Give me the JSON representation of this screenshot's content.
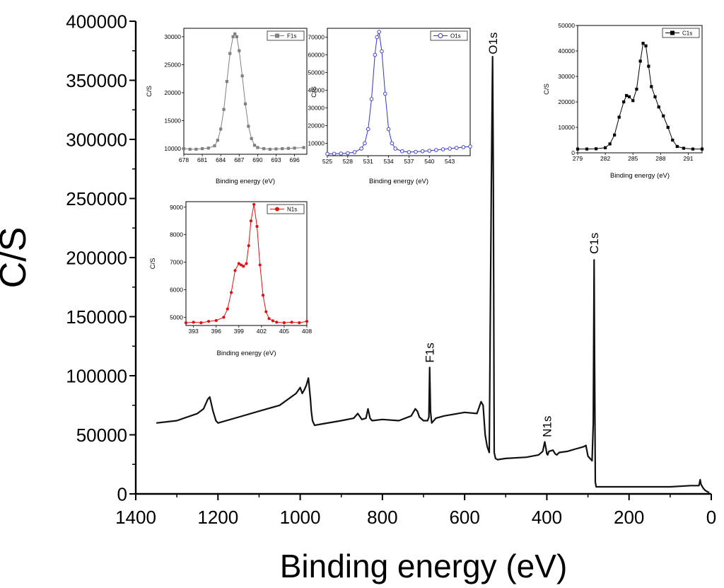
{
  "chart_data": [
    {
      "id": "main",
      "type": "line",
      "title": "",
      "xlabel": "Binding energy (eV)",
      "ylabel": "C/S",
      "xlim": [
        1400,
        0
      ],
      "ylim": [
        0,
        400000
      ],
      "xticks": [
        1400,
        1200,
        1000,
        800,
        600,
        400,
        200,
        0
      ],
      "yticks": [
        0,
        50000,
        100000,
        150000,
        200000,
        250000,
        300000,
        350000,
        400000
      ],
      "tick_labels_x": [
        "1400",
        "1200",
        "1000",
        "800",
        "600",
        "400",
        "200",
        "0"
      ],
      "tick_labels_y": [
        "0",
        "50000",
        "100000",
        "150000",
        "200000",
        "250000",
        "300000",
        "350000",
        "400000"
      ],
      "series": [
        {
          "name": "survey",
          "color": "#111111",
          "x": [
            1350,
            1300,
            1250,
            1235,
            1225,
            1220,
            1212,
            1205,
            1200,
            1150,
            1100,
            1050,
            1010,
            1000,
            995,
            990,
            985,
            980,
            975,
            973,
            970,
            965,
            950,
            900,
            870,
            860,
            850,
            840,
            835,
            830,
            825,
            800,
            760,
            730,
            720,
            715,
            710,
            700,
            690,
            687,
            685,
            683,
            680,
            670,
            650,
            600,
            570,
            560,
            555,
            550,
            545,
            540,
            535,
            532,
            530,
            528,
            525,
            520,
            500,
            450,
            420,
            410,
            405,
            402,
            400,
            398,
            395,
            385,
            380,
            376,
            370,
            350,
            340,
            330,
            320,
            310,
            305,
            300,
            295,
            290,
            287,
            285,
            284,
            282,
            280,
            270,
            250,
            200,
            150,
            100,
            50,
            30,
            27,
            25,
            20,
            15,
            10,
            5
          ],
          "y": [
            60000,
            62000,
            68000,
            72000,
            80000,
            82000,
            70000,
            62000,
            60000,
            65000,
            70000,
            75000,
            85000,
            90000,
            85000,
            88000,
            92000,
            98000,
            80000,
            70000,
            62000,
            58000,
            59000,
            62000,
            64000,
            68000,
            63000,
            64000,
            72000,
            64000,
            62000,
            63000,
            62000,
            66000,
            72000,
            70000,
            65000,
            62000,
            62000,
            65000,
            107000,
            70000,
            60000,
            64000,
            66000,
            69000,
            68000,
            78000,
            75000,
            50000,
            40000,
            35000,
            260000,
            370000,
            260000,
            35000,
            30000,
            29000,
            30000,
            31000,
            33000,
            36000,
            44000,
            38000,
            34000,
            33000,
            36000,
            37000,
            34000,
            33000,
            35000,
            36000,
            37000,
            38000,
            39000,
            40000,
            41000,
            32000,
            30000,
            28000,
            60000,
            198000,
            120000,
            10000,
            6000,
            6000,
            6000,
            6000,
            6000,
            6000,
            7000,
            7000,
            12000,
            8000,
            5000,
            3000,
            2000,
            1000
          ]
        }
      ],
      "annotations": [
        {
          "text": "O1s",
          "x": 531,
          "y": 372000
        },
        {
          "text": "C1s",
          "x": 285,
          "y": 203000
        },
        {
          "text": "F1s",
          "x": 685,
          "y": 111000
        },
        {
          "text": "N1s",
          "x": 400,
          "y": 48000
        }
      ]
    },
    {
      "id": "inset-f1s",
      "type": "scatter",
      "xlabel": "Binding energy (eV)",
      "ylabel": "C/S",
      "xlim": [
        678,
        698
      ],
      "ylim": [
        9000,
        31500
      ],
      "xticks": [
        678,
        681,
        684,
        687,
        690,
        693,
        696
      ],
      "yticks": [
        10000,
        15000,
        20000,
        25000,
        30000
      ],
      "tick_labels_x": [
        "678",
        "681",
        "684",
        "687",
        "690",
        "693",
        "696"
      ],
      "tick_labels_y": [
        "10000",
        "15000",
        "20000",
        "25000",
        "30000"
      ],
      "legend": "F1s",
      "legend_position": "top-right",
      "marker": "square",
      "series": [
        {
          "name": "F1s",
          "color": "#808080",
          "x": [
            678,
            679,
            680,
            681,
            682,
            683,
            683.5,
            684,
            684.5,
            685,
            685.5,
            686,
            686.3,
            686.6,
            687,
            687.5,
            688,
            688.5,
            689,
            689.5,
            690,
            691,
            692,
            693,
            694,
            695,
            696,
            697.5
          ],
          "y": [
            10000,
            9900,
            9900,
            10000,
            10100,
            10500,
            11500,
            13500,
            17000,
            22000,
            27000,
            30000,
            30500,
            30000,
            27500,
            23000,
            18000,
            14000,
            11800,
            10600,
            10200,
            10000,
            9900,
            9950,
            10000,
            10050,
            10100,
            10200
          ]
        }
      ]
    },
    {
      "id": "inset-o1s",
      "type": "scatter",
      "xlabel": "Binding energy (eV)",
      "ylabel": "C/S",
      "xlim": [
        525,
        546
      ],
      "ylim": [
        3000,
        75000
      ],
      "xticks": [
        525,
        528,
        531,
        534,
        537,
        540,
        543
      ],
      "yticks": [
        10000,
        20000,
        30000,
        40000,
        50000,
        60000,
        70000
      ],
      "tick_labels_x": [
        "525",
        "528",
        "531",
        "534",
        "537",
        "540",
        "543"
      ],
      "tick_labels_y": [
        "10000",
        "20000",
        "30000",
        "40000",
        "50000",
        "60000",
        "70000"
      ],
      "legend": "O1s",
      "legend_position": "top-right",
      "marker": "circle-open",
      "series": [
        {
          "name": "O1s",
          "color": "#3333cc",
          "x": [
            525,
            526,
            527,
            528,
            529,
            530,
            530.5,
            531,
            531.5,
            532,
            532.3,
            532.6,
            533,
            533.5,
            534,
            534.5,
            535,
            536,
            537,
            538,
            539,
            540,
            541,
            542,
            543,
            544,
            545,
            546
          ],
          "y": [
            4000,
            4100,
            4200,
            4400,
            5000,
            7000,
            10000,
            18000,
            35000,
            60000,
            70000,
            73000,
            62000,
            38000,
            18000,
            10000,
            7000,
            5500,
            5000,
            5200,
            5500,
            5800,
            6200,
            6600,
            7000,
            7400,
            7800,
            8200
          ]
        }
      ]
    },
    {
      "id": "inset-c1s",
      "type": "scatter",
      "xlabel": "Binding energy (eV)",
      "ylabel": "C/S",
      "xlim": [
        279,
        292.5
      ],
      "ylim": [
        0,
        50000
      ],
      "xticks": [
        279,
        282,
        285,
        288,
        291
      ],
      "yticks": [
        0,
        10000,
        20000,
        30000,
        40000,
        50000
      ],
      "tick_labels_x": [
        "279",
        "282",
        "285",
        "288",
        "291"
      ],
      "tick_labels_y": [
        "0",
        "10000",
        "20000",
        "30000",
        "40000",
        "50000"
      ],
      "legend": "C1s",
      "legend_position": "top-right",
      "marker": "square-filled",
      "series": [
        {
          "name": "C1s",
          "color": "#000000",
          "x": [
            279,
            280,
            281,
            282,
            282.5,
            283,
            283.5,
            284,
            284.3,
            284.6,
            285,
            285.4,
            285.8,
            286.1,
            286.4,
            286.7,
            287,
            287.4,
            287.8,
            288.3,
            288.8,
            289.3,
            289.8,
            290.5,
            291.5,
            292.5
          ],
          "y": [
            1500,
            1500,
            1600,
            2000,
            3500,
            7000,
            14000,
            20000,
            22500,
            22000,
            20500,
            25000,
            36000,
            43000,
            42000,
            34000,
            26000,
            22000,
            18000,
            14500,
            10000,
            5000,
            2500,
            1800,
            1500,
            1500
          ]
        }
      ]
    },
    {
      "id": "inset-n1s",
      "type": "scatter",
      "xlabel": "Binding energy (eV)",
      "ylabel": "C/S",
      "xlim": [
        392,
        408
      ],
      "ylim": [
        4700,
        9200
      ],
      "xticks": [
        393,
        396,
        399,
        402,
        405,
        408
      ],
      "yticks": [
        5000,
        6000,
        7000,
        8000,
        9000
      ],
      "tick_labels_x": [
        "393",
        "396",
        "399",
        "402",
        "405",
        "408"
      ],
      "tick_labels_y": [
        "5000",
        "6000",
        "7000",
        "8000",
        "9000"
      ],
      "legend": "N1s",
      "legend_position": "top-right",
      "marker": "circle-filled",
      "series": [
        {
          "name": "N1s",
          "color": "#e01010",
          "x": [
            392,
            393,
            394,
            395,
            396,
            397,
            397.5,
            398,
            398.5,
            399,
            399.3,
            399.6,
            400,
            400.3,
            400.6,
            401,
            401.4,
            401.8,
            402.2,
            402.6,
            403,
            403.5,
            404,
            405,
            406,
            407,
            408
          ],
          "y": [
            4800,
            4820,
            4800,
            4850,
            4880,
            5000,
            5300,
            5900,
            6700,
            6950,
            6900,
            6850,
            6950,
            7600,
            8500,
            9100,
            8300,
            6900,
            5800,
            5200,
            4950,
            4870,
            4820,
            4800,
            4820,
            4800,
            4850
          ]
        }
      ]
    }
  ]
}
